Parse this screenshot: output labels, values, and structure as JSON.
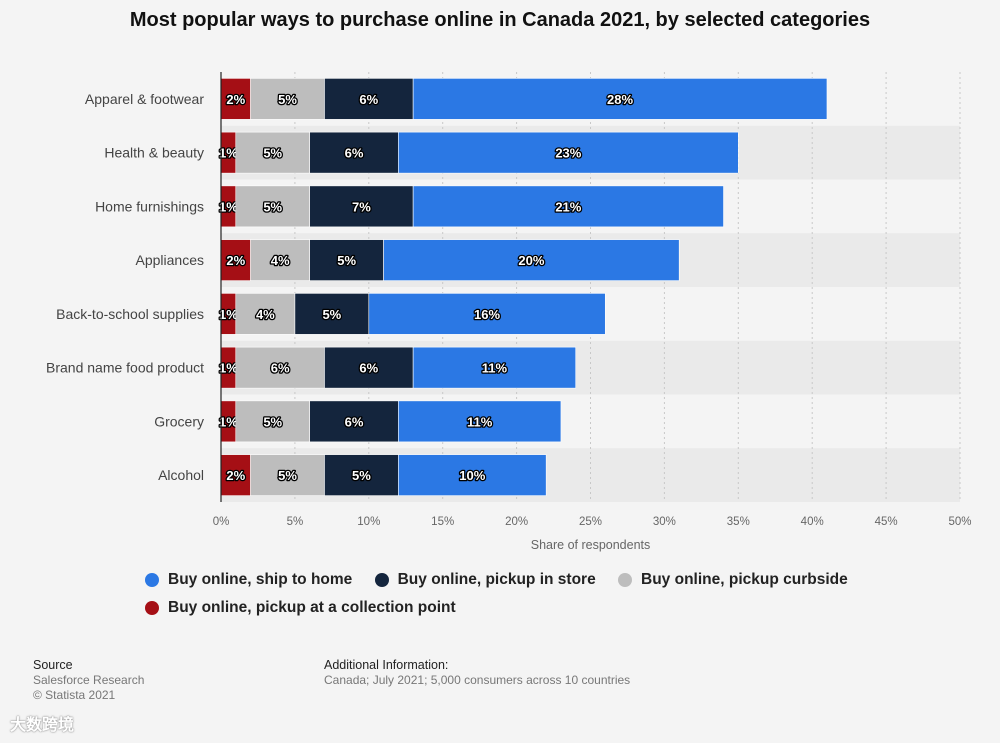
{
  "chart_data": {
    "type": "bar",
    "orientation": "horizontal",
    "stacked": true,
    "title": "Most popular ways to purchase online in Canada 2021, by selected categories",
    "categories": [
      "Apparel & footwear",
      "Health & beauty",
      "Home furnishings",
      "Appliances",
      "Back-to-school supplies",
      "Brand name food product",
      "Grocery",
      "Alcohol"
    ],
    "series": [
      {
        "name": "Buy online, pickup at a collection point",
        "color": "#a50f15",
        "values": [
          2,
          1,
          1,
          2,
          1,
          1,
          1,
          2
        ]
      },
      {
        "name": "Buy online, pickup curbside",
        "color": "#bdbdbd",
        "values": [
          5,
          5,
          5,
          4,
          4,
          6,
          5,
          5
        ]
      },
      {
        "name": "Buy online, pickup in store",
        "color": "#14253d",
        "values": [
          6,
          6,
          7,
          5,
          5,
          6,
          6,
          5
        ]
      },
      {
        "name": "Buy online, ship to home",
        "color": "#2b78e4",
        "values": [
          28,
          23,
          21,
          20,
          16,
          11,
          11,
          10
        ]
      }
    ],
    "xlabel": "Share of respondents",
    "xlim": [
      0,
      50
    ],
    "xticks": [
      0,
      5,
      10,
      15,
      20,
      25,
      30,
      35,
      40,
      45,
      50
    ],
    "tick_suffix": "%",
    "grid": true
  },
  "legend": {
    "placement": "bottom",
    "items": [
      {
        "label": "Buy online, ship to home",
        "color": "#2b78e4"
      },
      {
        "label": "Buy online, pickup in store",
        "color": "#14253d"
      },
      {
        "label": "Buy online, pickup curbside",
        "color": "#bdbdbd"
      },
      {
        "label": "Buy online, pickup at a collection point",
        "color": "#a50f15"
      }
    ]
  },
  "footer": {
    "source_heading": "Source",
    "source_lines": [
      "Salesforce Research",
      "© Statista 2021"
    ],
    "info_heading": "Additional Information:",
    "info_line": "Canada; July 2021; 5,000 consumers across 10 countries"
  },
  "watermark": "大数跨境"
}
